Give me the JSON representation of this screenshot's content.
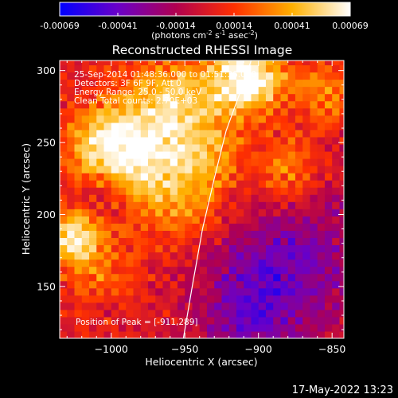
{
  "chart_data": {
    "type": "heatmap",
    "title": "Reconstructed RHESSI Image",
    "colorbar": {
      "ticks": [
        "-0.00069",
        "-0.00041",
        "-0.00014",
        "0.00014",
        "0.00041",
        "0.00069"
      ],
      "unit_parts": [
        "(photons cm",
        "-2",
        " s",
        "-1",
        " asec",
        "-2",
        ")"
      ],
      "range": [
        -0.00069,
        0.00069
      ],
      "colors": [
        "#0000ff",
        "#6a00c8",
        "#b00050",
        "#ff3000",
        "#ffb000",
        "#ffffff"
      ]
    },
    "xlabel": "Heliocentric X (arcsec)",
    "ylabel": "Heliocentric Y (arcsec)",
    "xlim": [
      -1035,
      -842
    ],
    "ylim": [
      114,
      307
    ],
    "xticks": [
      -1000,
      -950,
      -900,
      -850
    ],
    "xtick_labels": [
      "−1000",
      "−950",
      "−900",
      "−850"
    ],
    "yticks": [
      150,
      200,
      250,
      300
    ],
    "ytick_labels": [
      "150",
      "200",
      "250",
      "300"
    ],
    "grid": false,
    "annotations": [
      "25-Sep-2014 01:48:36.000 to 01:51:36.000",
      "Detectors: 3F 6F 9F, Att 0",
      "Energy Range: 25.0 - 50.0 keV",
      "Clean    Total counts: 2.70E+03"
    ],
    "peak_label": "Position of Peak = [-911,289]",
    "peak_position": [
      -911,
      289
    ],
    "limb_curve": [
      [
        -951,
        114
      ],
      [
        -945,
        150
      ],
      [
        -938,
        190
      ],
      [
        -930,
        225
      ],
      [
        -922,
        258
      ],
      [
        -911,
        289
      ],
      [
        -905,
        307
      ]
    ],
    "hotspots": [
      {
        "x": -908,
        "y": 295,
        "amp": 1.0,
        "sigma": 18
      },
      {
        "x": -960,
        "y": 282,
        "amp": 0.55,
        "sigma": 22
      },
      {
        "x": -1005,
        "y": 250,
        "amp": 0.6,
        "sigma": 20
      },
      {
        "x": -980,
        "y": 240,
        "amp": 0.5,
        "sigma": 25
      },
      {
        "x": -950,
        "y": 215,
        "amp": 0.45,
        "sigma": 25
      },
      {
        "x": -1025,
        "y": 185,
        "amp": 0.7,
        "sigma": 14
      },
      {
        "x": -1010,
        "y": 160,
        "amp": 0.3,
        "sigma": 18
      },
      {
        "x": -880,
        "y": 230,
        "amp": 0.45,
        "sigma": 16
      },
      {
        "x": -855,
        "y": 285,
        "amp": 0.4,
        "sigma": 16
      },
      {
        "x": -935,
        "y": 250,
        "amp": 0.3,
        "sigma": 18
      }
    ],
    "coldspots": [
      {
        "x": -880,
        "y": 170,
        "amp": 0.7,
        "sigma": 35
      },
      {
        "x": -905,
        "y": 130,
        "amp": 0.6,
        "sigma": 25
      },
      {
        "x": -1005,
        "y": 215,
        "amp": 0.35,
        "sigma": 14
      }
    ]
  },
  "footer": {
    "date": "17-May-2022 13:23"
  }
}
